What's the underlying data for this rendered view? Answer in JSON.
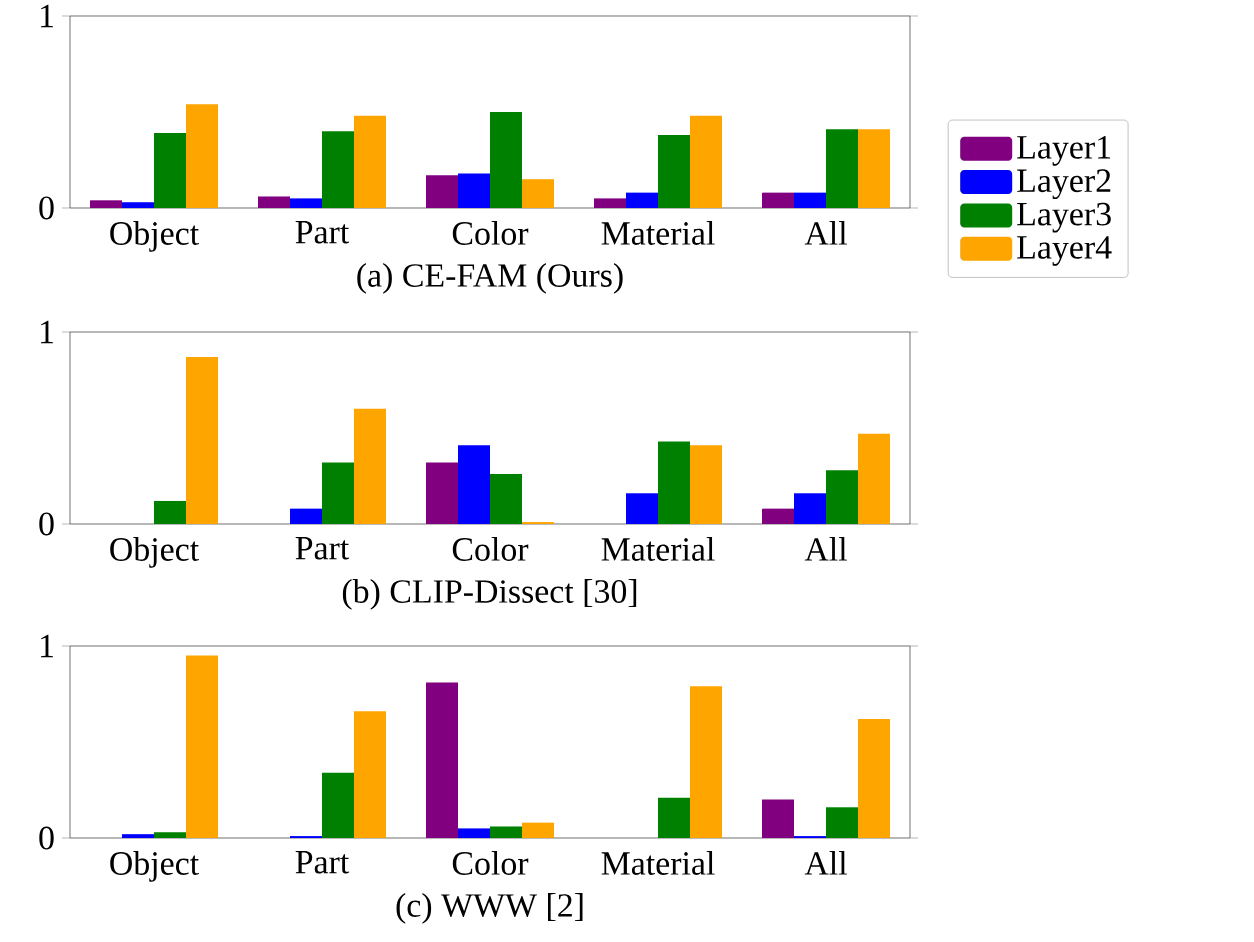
{
  "chart_data": [
    {
      "type": "bar",
      "title": "(a) CE-FAM (Ours)",
      "categories": [
        "Object",
        "Part",
        "Color",
        "Material",
        "All"
      ],
      "ylim": [
        0,
        1
      ],
      "yticks": [
        0,
        1
      ],
      "legend": "right",
      "series": [
        {
          "name": "Layer1",
          "color": "#800080",
          "values": [
            0.04,
            0.06,
            0.17,
            0.05,
            0.08
          ]
        },
        {
          "name": "Layer2",
          "color": "#0000ff",
          "values": [
            0.03,
            0.05,
            0.18,
            0.08,
            0.08
          ]
        },
        {
          "name": "Layer3",
          "color": "#008000",
          "values": [
            0.39,
            0.4,
            0.5,
            0.38,
            0.41
          ]
        },
        {
          "name": "Layer4",
          "color": "#ffa500",
          "values": [
            0.54,
            0.48,
            0.15,
            0.48,
            0.41
          ]
        }
      ]
    },
    {
      "type": "bar",
      "title": "(b) CLIP-Dissect [30]",
      "categories": [
        "Object",
        "Part",
        "Color",
        "Material",
        "All"
      ],
      "ylim": [
        0,
        1
      ],
      "yticks": [
        0,
        1
      ],
      "series": [
        {
          "color": "#800080",
          "values": [
            0,
            0,
            0.32,
            0,
            0.08
          ]
        },
        {
          "color": "#0000ff",
          "values": [
            0,
            0.08,
            0.41,
            0.16,
            0.16
          ]
        },
        {
          "color": "#008000",
          "values": [
            0.12,
            0.32,
            0.26,
            0.43,
            0.28
          ]
        },
        {
          "color": "#ffa500",
          "values": [
            0.87,
            0.6,
            0.01,
            0.41,
            0.47
          ]
        }
      ]
    },
    {
      "type": "bar",
      "title": "(c) WWW [2]",
      "categories": [
        "Object",
        "Part",
        "Color",
        "Material",
        "All"
      ],
      "ylim": [
        0,
        1
      ],
      "yticks": [
        0,
        1
      ],
      "series": [
        {
          "color": "#800080",
          "values": [
            0,
            0,
            0.81,
            0,
            0.2
          ]
        },
        {
          "color": "#0000ff",
          "values": [
            0.02,
            0.01,
            0.05,
            0,
            0.01
          ]
        },
        {
          "color": "#008000",
          "values": [
            0.03,
            0.34,
            0.06,
            0.21,
            0.16
          ]
        },
        {
          "color": "#ffa500",
          "values": [
            0.95,
            0.66,
            0.08,
            0.79,
            0.62
          ]
        }
      ]
    }
  ]
}
